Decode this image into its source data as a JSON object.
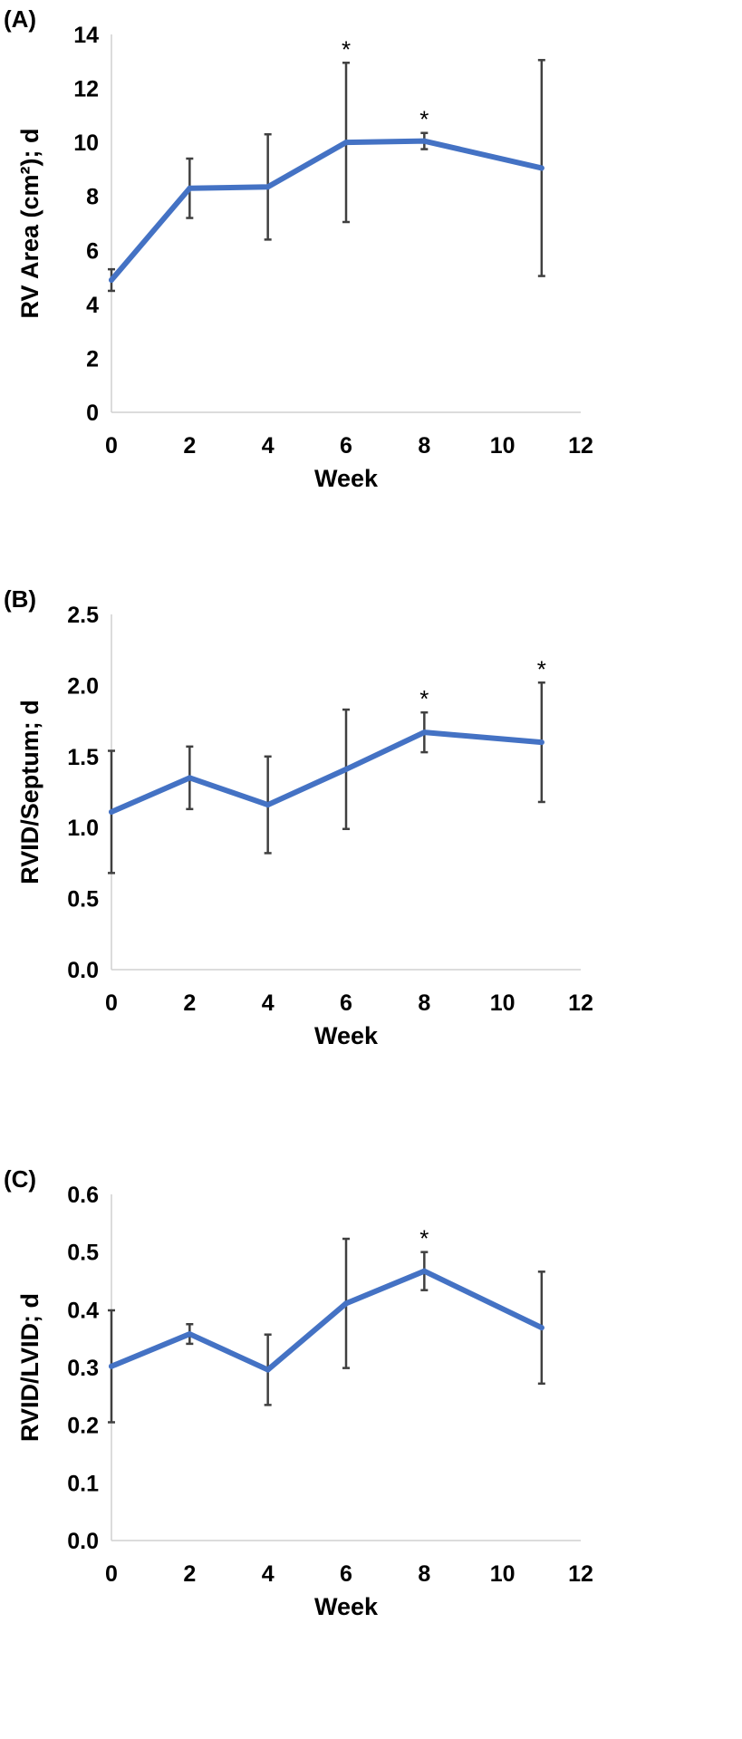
{
  "panels": [
    {
      "label": "(A)"
    },
    {
      "label": "(B)"
    },
    {
      "label": "(C)"
    }
  ],
  "colors": {
    "line": "#4472C4",
    "error_bar": "#404040",
    "axis": "#d0d0d0",
    "text": "#000000"
  },
  "chart_data": [
    {
      "type": "line",
      "xlabel": "Week",
      "ylabel": "RV Area (cm²); d",
      "xlim": [
        0,
        12
      ],
      "ylim": [
        0,
        14
      ],
      "xticks": [
        "0",
        "2",
        "4",
        "6",
        "8",
        "10",
        "12"
      ],
      "yticks": [
        "0",
        "2",
        "4",
        "6",
        "8",
        "10",
        "12",
        "14"
      ],
      "grid": false,
      "x": [
        0,
        2,
        4,
        6,
        8,
        11
      ],
      "values": [
        4.9,
        8.3,
        8.35,
        10.0,
        10.05,
        9.05
      ],
      "error": [
        0.4,
        1.1,
        1.95,
        2.95,
        0.3,
        4.0
      ],
      "significant": [
        false,
        false,
        false,
        true,
        true,
        false
      ],
      "marker": "*"
    },
    {
      "type": "line",
      "xlabel": "Week",
      "ylabel": "RVID/Septum; d",
      "xlim": [
        0,
        12
      ],
      "ylim": [
        0,
        2.5
      ],
      "xticks": [
        "0",
        "2",
        "4",
        "6",
        "8",
        "10",
        "12"
      ],
      "yticks": [
        "0.0",
        "0.5",
        "1.0",
        "1.5",
        "2.0",
        "2.5"
      ],
      "grid": false,
      "x": [
        0,
        2,
        4,
        6,
        8,
        11
      ],
      "values": [
        1.11,
        1.35,
        1.16,
        1.41,
        1.67,
        1.6
      ],
      "error": [
        0.43,
        0.22,
        0.34,
        0.42,
        0.14,
        0.42
      ],
      "significant": [
        false,
        false,
        false,
        false,
        true,
        true
      ],
      "marker": "*"
    },
    {
      "type": "line",
      "xlabel": "Week",
      "ylabel": "RVID/LVID; d",
      "xlim": [
        0,
        12
      ],
      "ylim": [
        0,
        0.6
      ],
      "xticks": [
        "0",
        "2",
        "4",
        "6",
        "8",
        "10",
        "12"
      ],
      "yticks": [
        "0.0",
        "0.1",
        "0.2",
        "0.3",
        "0.4",
        "0.5",
        "0.6"
      ],
      "grid": false,
      "x": [
        0,
        2,
        4,
        6,
        8,
        11
      ],
      "values": [
        0.302,
        0.358,
        0.296,
        0.411,
        0.467,
        0.369
      ],
      "error": [
        0.097,
        0.017,
        0.061,
        0.112,
        0.033,
        0.097
      ],
      "significant": [
        false,
        false,
        false,
        false,
        true,
        false
      ],
      "marker": "*"
    }
  ]
}
